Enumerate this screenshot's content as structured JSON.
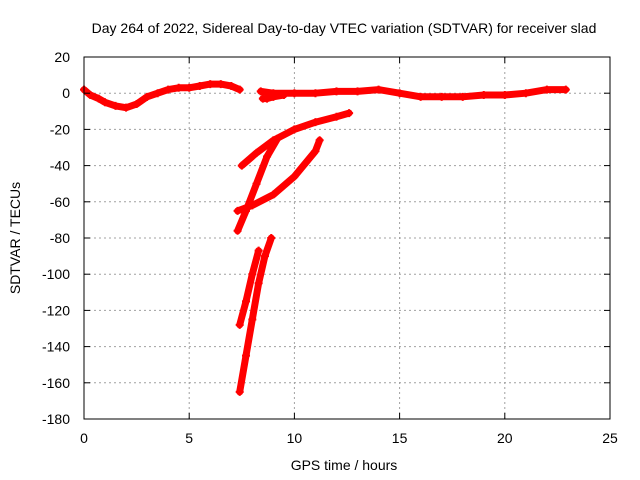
{
  "chart_data": {
    "type": "scatter",
    "title": "Day 264 of 2022, Sidereal Day-to-day VTEC variation (SDTVAR) for receiver slad",
    "xlabel": "GPS time / hours",
    "ylabel": "SDTVAR / TECUs",
    "xlim": [
      0,
      25
    ],
    "ylim": [
      -180,
      20
    ],
    "xticks": [
      0,
      5,
      10,
      15,
      20,
      25
    ],
    "yticks": [
      20,
      0,
      -20,
      -40,
      -60,
      -80,
      -100,
      -120,
      -140,
      -160,
      -180
    ],
    "grid": true,
    "color": "#ff0000",
    "series": [
      {
        "id": "arc-main-early",
        "points": [
          [
            0,
            2
          ],
          [
            0.3,
            -1
          ],
          [
            0.7,
            -3
          ],
          [
            1.0,
            -5
          ],
          [
            1.5,
            -7
          ],
          [
            2.0,
            -8
          ],
          [
            2.5,
            -6
          ],
          [
            3.0,
            -2
          ],
          [
            3.5,
            0
          ],
          [
            4.0,
            2
          ],
          [
            4.5,
            3
          ],
          [
            5.0,
            3
          ],
          [
            5.5,
            4
          ],
          [
            6.0,
            5
          ],
          [
            6.5,
            5
          ],
          [
            7.0,
            4
          ],
          [
            7.4,
            2
          ]
        ]
      },
      {
        "id": "arc-main-late",
        "points": [
          [
            8.4,
            1
          ],
          [
            9.0,
            0
          ],
          [
            10.0,
            0
          ],
          [
            11.0,
            0
          ],
          [
            12.0,
            1
          ],
          [
            13.0,
            1
          ],
          [
            14.0,
            2
          ],
          [
            15.0,
            0
          ],
          [
            16.0,
            -2
          ],
          [
            17.0,
            -2
          ],
          [
            18.0,
            -2
          ],
          [
            19.0,
            -1
          ],
          [
            20.0,
            -1
          ],
          [
            21.0,
            0
          ],
          [
            22.0,
            2
          ],
          [
            22.9,
            2
          ]
        ]
      },
      {
        "id": "arc-dip-1",
        "points": [
          [
            8.5,
            -3
          ],
          [
            8.7,
            -3
          ],
          [
            9.0,
            -2
          ],
          [
            9.5,
            -1
          ]
        ]
      },
      {
        "id": "arc-curve-a",
        "points": [
          [
            7.5,
            -40
          ],
          [
            8.2,
            -33
          ],
          [
            9.0,
            -26
          ],
          [
            10.0,
            -20
          ],
          [
            11.0,
            -16
          ],
          [
            12.0,
            -13
          ],
          [
            12.6,
            -11
          ]
        ]
      },
      {
        "id": "arc-curve-b",
        "points": [
          [
            7.3,
            -65
          ],
          [
            8.0,
            -62
          ],
          [
            9.0,
            -56
          ],
          [
            10.0,
            -46
          ],
          [
            11.0,
            -32
          ],
          [
            11.2,
            -26
          ]
        ]
      },
      {
        "id": "arc-steep-a",
        "points": [
          [
            7.3,
            -76
          ],
          [
            7.7,
            -65
          ],
          [
            8.2,
            -50
          ],
          [
            8.7,
            -35
          ],
          [
            9.2,
            -25
          ]
        ]
      },
      {
        "id": "arc-steep-b",
        "points": [
          [
            7.4,
            -128
          ],
          [
            7.7,
            -115
          ],
          [
            8.0,
            -100
          ],
          [
            8.3,
            -87
          ]
        ]
      },
      {
        "id": "arc-steep-c",
        "points": [
          [
            7.4,
            -165
          ],
          [
            7.7,
            -145
          ],
          [
            8.0,
            -125
          ],
          [
            8.3,
            -105
          ],
          [
            8.6,
            -90
          ],
          [
            8.9,
            -80
          ]
        ]
      }
    ]
  }
}
